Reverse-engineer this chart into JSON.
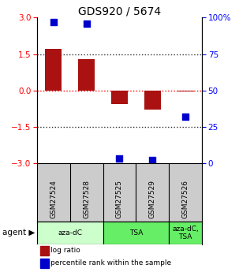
{
  "title": "GDS920 / 5674",
  "samples": [
    "GSM27524",
    "GSM27528",
    "GSM27525",
    "GSM27529",
    "GSM27526"
  ],
  "log_ratios": [
    1.7,
    1.3,
    -0.55,
    -0.8,
    -0.05
  ],
  "percentile_ranks": [
    97,
    96,
    3,
    2,
    32
  ],
  "bar_color": "#aa1111",
  "dot_color": "#0000cc",
  "ylim": [
    -3,
    3
  ],
  "yticks_left": [
    -3,
    -1.5,
    0,
    1.5,
    3
  ],
  "yticks_right": [
    0,
    25,
    50,
    75,
    100
  ],
  "hlines_dark": [
    -1.5,
    1.5
  ],
  "hline_red": 0,
  "agents": [
    {
      "label": "aza-dC",
      "cols": [
        0,
        1
      ],
      "color": "#ccffcc"
    },
    {
      "label": "TSA",
      "cols": [
        2,
        3
      ],
      "color": "#66ee66"
    },
    {
      "label": "aza-dC,\nTSA",
      "cols": [
        4
      ],
      "color": "#66ee66"
    }
  ],
  "legend_bar_label": "log ratio",
  "legend_dot_label": "percentile rank within the sample",
  "background_color": "#ffffff",
  "sample_bg": "#cccccc",
  "bar_width": 0.5
}
